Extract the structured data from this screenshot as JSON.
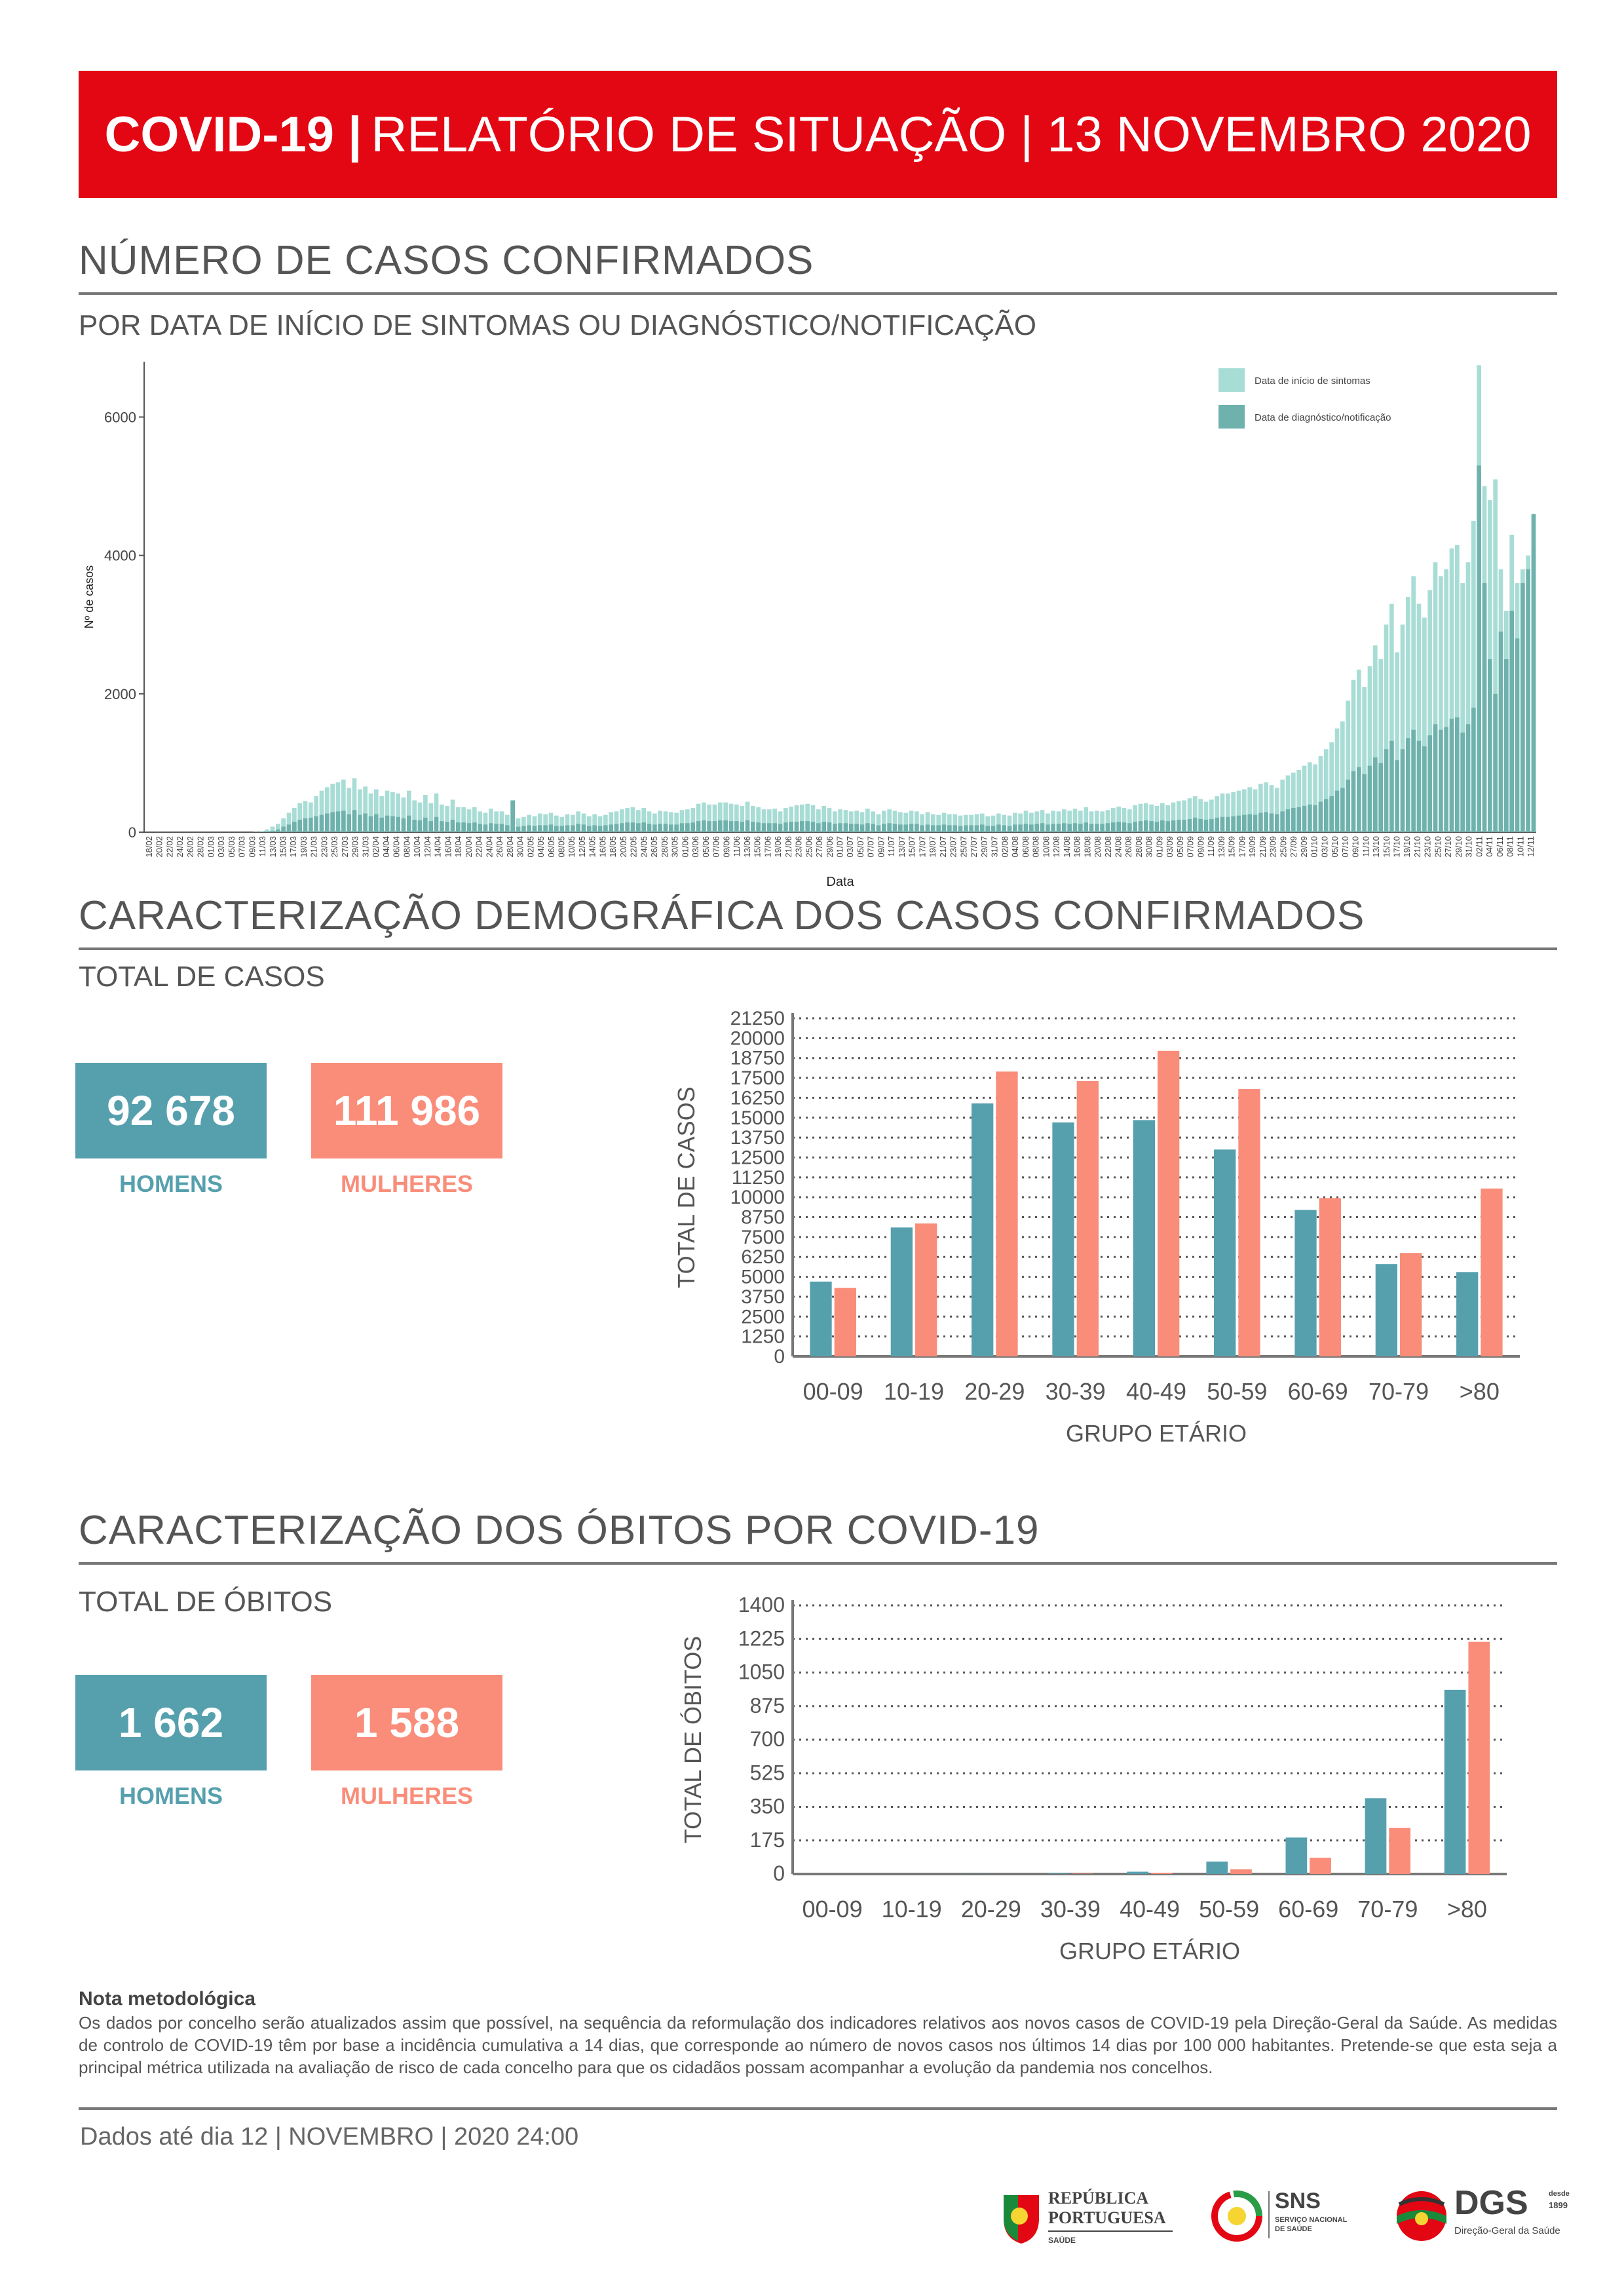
{
  "header": {
    "title_bold": "COVID-19 |",
    "title_rest": "RELATÓRIO DE SITUAÇÃO | 13 NOVEMBRO 2020"
  },
  "section_cases": {
    "title": "NÚMERO DE CASOS CONFIRMADOS",
    "subtitle": "POR DATA DE INÍCIO DE SINTOMAS OU DIAGNÓSTICO/NOTIFICAÇÃO"
  },
  "section_demo": {
    "title": "CARACTERIZAÇÃO DEMOGRÁFICA DOS CASOS CONFIRMADOS",
    "subtitle": "TOTAL DE CASOS",
    "men_value": "92 678",
    "men_label": "HOMENS",
    "women_value": "111 986",
    "women_label": "MULHERES"
  },
  "section_deaths": {
    "title": "CARACTERIZAÇÃO DOS ÓBITOS POR COVID-19",
    "subtitle": "TOTAL DE ÓBITOS",
    "men_value": "1 662",
    "men_label": "HOMENS",
    "women_value": "1 588",
    "women_label": "MULHERES"
  },
  "colors": {
    "red": "#e30613",
    "men": "#56a0ae",
    "women": "#f98d7a",
    "symptom_light": "#a8ddd6",
    "notif_dark": "#6fb2ad"
  },
  "chart_data": [
    {
      "type": "bar",
      "ylabel": "Nº de casos",
      "xlabel": "Data",
      "ylim": [
        0,
        6800
      ],
      "yticks": [
        0,
        2000,
        4000,
        6000
      ],
      "x_tick_labels": [
        "18/02",
        "20/02",
        "22/02",
        "24/02",
        "26/02",
        "28/02",
        "01/03",
        "03/03",
        "05/03",
        "07/03",
        "09/03",
        "11/03",
        "13/03",
        "15/03",
        "17/03",
        "19/03",
        "21/03",
        "23/03",
        "25/03",
        "27/03",
        "29/03",
        "31/03",
        "02/04",
        "04/04",
        "06/04",
        "08/04",
        "10/04",
        "12/04",
        "14/04",
        "16/04",
        "18/04",
        "20/04",
        "22/04",
        "24/04",
        "26/04",
        "28/04",
        "30/04",
        "02/05",
        "04/05",
        "06/05",
        "08/05",
        "10/05",
        "12/05",
        "14/05",
        "16/05",
        "18/05",
        "20/05",
        "22/05",
        "24/05",
        "26/05",
        "28/05",
        "30/05",
        "01/06",
        "03/06",
        "05/06",
        "07/06",
        "09/06",
        "11/06",
        "13/06",
        "15/06",
        "17/06",
        "19/06",
        "21/06",
        "23/06",
        "25/06",
        "27/06",
        "29/06",
        "01/07",
        "03/07",
        "05/07",
        "07/07",
        "09/07",
        "11/07",
        "13/07",
        "15/07",
        "17/07",
        "19/07",
        "21/07",
        "23/07",
        "25/07",
        "27/07",
        "29/07",
        "31/07",
        "02/08",
        "04/08",
        "06/08",
        "08/08",
        "10/08",
        "12/08",
        "14/08",
        "16/08",
        "18/08",
        "20/08",
        "22/08",
        "24/08",
        "26/08",
        "28/08",
        "30/08",
        "01/09",
        "03/09",
        "05/09",
        "07/09",
        "09/09",
        "11/09",
        "13/09",
        "15/09",
        "17/09",
        "19/09",
        "21/09",
        "23/09",
        "25/09",
        "27/09",
        "29/09",
        "01/10",
        "03/10",
        "05/10",
        "07/10",
        "09/10",
        "11/10",
        "13/10",
        "15/10",
        "17/10",
        "19/10",
        "21/10",
        "23/10",
        "25/10",
        "27/10",
        "29/10",
        "31/10",
        "02/11",
        "04/11",
        "06/11",
        "08/11",
        "10/11",
        "12/11"
      ],
      "legend": [
        "Data de início de sintomas",
        "Data de diagnóstico/notificação"
      ],
      "legend_position": "top-right",
      "series": [
        {
          "name": "Data de início de sintomas",
          "values": [
            0,
            0,
            0,
            0,
            0,
            0,
            0,
            0,
            0,
            0,
            0,
            0,
            0,
            0,
            0,
            0,
            0,
            0,
            0,
            0,
            5,
            15,
            40,
            80,
            120,
            200,
            280,
            350,
            420,
            450,
            430,
            520,
            600,
            650,
            700,
            720,
            760,
            640,
            780,
            620,
            660,
            560,
            620,
            520,
            600,
            580,
            560,
            500,
            600,
            460,
            430,
            540,
            420,
            560,
            400,
            380,
            470,
            360,
            360,
            330,
            360,
            300,
            280,
            340,
            300,
            300,
            250,
            440,
            200,
            220,
            250,
            230,
            270,
            260,
            280,
            240,
            220,
            260,
            250,
            300,
            270,
            230,
            260,
            230,
            250,
            290,
            300,
            330,
            350,
            360,
            320,
            350,
            300,
            270,
            310,
            300,
            290,
            280,
            320,
            330,
            350,
            410,
            430,
            400,
            400,
            430,
            430,
            410,
            400,
            380,
            440,
            380,
            360,
            330,
            330,
            340,
            300,
            350,
            370,
            390,
            400,
            410,
            390,
            330,
            380,
            350,
            300,
            330,
            320,
            300,
            310,
            290,
            340,
            300,
            260,
            310,
            330,
            310,
            290,
            280,
            310,
            300,
            260,
            290,
            260,
            250,
            280,
            260,
            260,
            240,
            250,
            250,
            260,
            270,
            230,
            240,
            270,
            250,
            240,
            280,
            270,
            310,
            280,
            300,
            320,
            270,
            310,
            300,
            330,
            310,
            340,
            310,
            360,
            300,
            310,
            300,
            320,
            350,
            370,
            350,
            330,
            390,
            410,
            420,
            400,
            380,
            420,
            390,
            430,
            450,
            460,
            490,
            520,
            480,
            440,
            470,
            520,
            560,
            560,
            580,
            600,
            620,
            650,
            620,
            700,
            720,
            680,
            640,
            760,
            820,
            860,
            900,
            960,
            1010,
            980,
            1100,
            1200,
            1300,
            1500,
            1600,
            1900,
            2200,
            2350,
            2100,
            2400,
            2700,
            2500,
            3000,
            3300,
            2600,
            3000,
            3400,
            3700,
            3300,
            3100,
            3500,
            3900,
            3700,
            3800,
            4100,
            4150,
            3600,
            3900,
            4500,
            6750,
            5000,
            4800,
            5100,
            3800,
            3200,
            4300,
            3600,
            3800,
            4000,
            4100
          ]
        },
        {
          "name": "Data de diagnóstico/notificação",
          "values": [
            0,
            0,
            0,
            0,
            0,
            0,
            0,
            0,
            0,
            0,
            0,
            0,
            0,
            0,
            0,
            0,
            0,
            0,
            0,
            0,
            2,
            5,
            10,
            20,
            40,
            80,
            110,
            150,
            180,
            200,
            210,
            230,
            250,
            270,
            290,
            300,
            310,
            260,
            320,
            250,
            270,
            230,
            260,
            210,
            240,
            230,
            220,
            200,
            240,
            180,
            170,
            210,
            160,
            220,
            160,
            150,
            180,
            140,
            140,
            130,
            140,
            120,
            110,
            130,
            120,
            120,
            100,
            460,
            80,
            90,
            100,
            90,
            100,
            100,
            110,
            90,
            90,
            100,
            100,
            120,
            110,
            90,
            100,
            90,
            100,
            110,
            120,
            130,
            140,
            140,
            130,
            140,
            120,
            110,
            120,
            120,
            110,
            110,
            130,
            130,
            140,
            160,
            170,
            160,
            160,
            170,
            170,
            160,
            160,
            150,
            170,
            150,
            140,
            130,
            130,
            130,
            120,
            140,
            150,
            150,
            160,
            160,
            150,
            130,
            150,
            140,
            120,
            130,
            130,
            120,
            120,
            110,
            130,
            120,
            100,
            120,
            130,
            120,
            110,
            110,
            120,
            120,
            100,
            110,
            100,
            100,
            110,
            100,
            100,
            90,
            100,
            100,
            100,
            110,
            90,
            90,
            110,
            100,
            90,
            110,
            110,
            120,
            110,
            120,
            130,
            110,
            120,
            120,
            130,
            120,
            130,
            120,
            140,
            120,
            120,
            120,
            130,
            140,
            150,
            140,
            130,
            150,
            160,
            170,
            160,
            150,
            170,
            160,
            170,
            180,
            180,
            190,
            210,
            190,
            180,
            190,
            210,
            220,
            220,
            230,
            240,
            250,
            260,
            250,
            280,
            290,
            270,
            260,
            300,
            330,
            350,
            360,
            380,
            400,
            390,
            440,
            480,
            520,
            600,
            640,
            760,
            880,
            940,
            840,
            960,
            1080,
            1000,
            1200,
            1320,
            1040,
            1200,
            1360,
            1480,
            1320,
            1240,
            1400,
            1560,
            1480,
            1520,
            1640,
            1660,
            1440,
            1560,
            1800,
            5300,
            3600,
            2500,
            2000,
            2900,
            2500,
            3200,
            2800,
            3600,
            3800,
            4600
          ]
        }
      ]
    },
    {
      "type": "bar",
      "categories": [
        "00-09",
        "10-19",
        "20-29",
        "30-39",
        "40-49",
        "50-59",
        "60-69",
        "70-79",
        ">80"
      ],
      "series": [
        {
          "name": "HOMENS",
          "values": [
            4700,
            8100,
            15900,
            14700,
            14850,
            13000,
            9200,
            5800,
            5300
          ]
        },
        {
          "name": "MULHERES",
          "values": [
            4300,
            8350,
            17900,
            17300,
            19200,
            16800,
            9950,
            6500,
            10550
          ]
        }
      ],
      "xlabel": "GRUPO ETÁRIO",
      "ylabel": "TOTAL DE CASOS",
      "ylim": [
        0,
        21250
      ],
      "yticks": [
        0,
        1250,
        2500,
        3750,
        5000,
        6250,
        7500,
        8750,
        10000,
        11250,
        12500,
        13750,
        15000,
        16250,
        17500,
        18750,
        20000,
        21250
      ],
      "grid": true
    },
    {
      "type": "bar",
      "categories": [
        "00-09",
        "10-19",
        "20-29",
        "30-39",
        "40-49",
        "50-59",
        "60-69",
        "70-79",
        ">80"
      ],
      "series": [
        {
          "name": "HOMENS",
          "values": [
            0,
            0,
            1,
            3,
            12,
            65,
            190,
            395,
            960
          ]
        },
        {
          "name": "MULHERES",
          "values": [
            0,
            0,
            0,
            2,
            6,
            25,
            85,
            240,
            1210
          ]
        }
      ],
      "xlabel": "GRUPO ETÁRIO",
      "ylabel": "TOTAL DE ÓBITOS",
      "ylim": [
        0,
        1400
      ],
      "yticks": [
        0,
        175,
        350,
        525,
        700,
        875,
        1050,
        1225,
        1400
      ],
      "grid": true
    }
  ],
  "note": {
    "title": "Nota metodológica",
    "text": "Os dados por concelho serão atualizados assim que possível, na sequência da reformulação dos indicadores relativos aos novos casos de COVID-19 pela Direção-Geral da Saúde. As medidas de controlo de COVID-19 têm por base a incidência cumulativa a 14 dias, que corresponde ao número de novos casos nos últimos 14 dias por 100 000 habitantes. Pretende-se que esta seja a principal métrica utilizada na avaliação de risco de cada concelho para que os cidadãos possam acompanhar a evolução da pandemia nos concelhos."
  },
  "footer": {
    "date_text": "Dados até dia 12 | NOVEMBRO | 2020 24:00",
    "logo1_line1": "REPÚBLICA",
    "logo1_line2": "PORTUGUESA",
    "logo1_line3": "SAÚDE",
    "logo2_title": "SNS",
    "logo2_sub1": "SERVIÇO NACIONAL",
    "logo2_sub2": "DE SAÚDE",
    "logo3_title": "DGS",
    "logo3_small1": "desde",
    "logo3_small2": "1899",
    "logo3_sub": "Direção-Geral da Saúde"
  }
}
